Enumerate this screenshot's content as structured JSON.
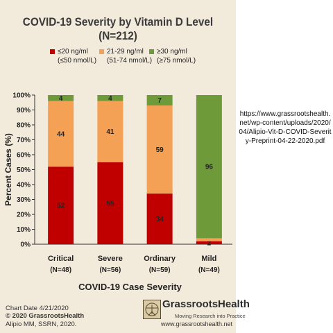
{
  "chart_data": {
    "type": "bar",
    "title": "COVID-19 Severity by Vitamin D Level (N=212)",
    "xlabel": "COVID-19 Case Severity",
    "ylabel": "Percent Cases (%)",
    "ylim": [
      0,
      100
    ],
    "yticks": [
      "0%",
      "10%",
      "20%",
      "30%",
      "40%",
      "50%",
      "60%",
      "70%",
      "80%",
      "90%",
      "100%"
    ],
    "stacked": true,
    "categories": [
      "Critical",
      "Severe",
      "Ordinary",
      "Mild"
    ],
    "category_n": [
      "(N=48)",
      "(N=56)",
      "(N=59)",
      "(N=49)"
    ],
    "series": [
      {
        "name": "≤20 ng/ml (≤50 nmol/L)",
        "values": [
          52,
          55,
          34,
          2
        ],
        "labels": [
          "52",
          "55",
          "34",
          "2"
        ],
        "color": "#c00000"
      },
      {
        "name": "21-29 ng/ml (51-74 nmol/L)",
        "values": [
          44,
          41,
          59,
          2
        ],
        "labels": [
          "44",
          "41",
          "59",
          ""
        ],
        "color": "#f4a055"
      },
      {
        "name": "≥30 ng/ml (≥75 nmol/L)",
        "values": [
          4,
          4,
          7,
          96
        ],
        "labels": [
          "4",
          "4",
          "7",
          "96"
        ],
        "color": "#6e9a3a"
      }
    ],
    "legend_position": "top",
    "grid": false
  },
  "legend": [
    {
      "line1": "≤20 ng/ml",
      "line2": "(≤50 nmol/L)",
      "color": "#c00000"
    },
    {
      "line1": "21-29 ng/ml",
      "line2": "(51-74 nmol/L)",
      "color": "#f4a055"
    },
    {
      "line1": "≥30 ng/ml",
      "line2": "(≥75 nmol/L)",
      "color": "#6e9a3a"
    }
  ],
  "side_url": "https://www.grassrootshealth.net/wp-content/uploads/2020/04/Alipio-Vit-D-COVID-Severity-Preprint-04-22-2020.pdf",
  "footer": {
    "chart_date": "Chart Date 4/21/2020",
    "copyright": "© 2020 GrassrootsHealth",
    "citation": "Alipio MM, SSRN, 2020."
  },
  "logo": {
    "name": "GrassrootsHealth",
    "tagline": "Moving Research into Practice",
    "url": "www.grassrootshealth.net"
  },
  "colors": {
    "panel": "#f2eadb",
    "low": "#c00000",
    "mid": "#f4a055",
    "high": "#6e9a3a"
  }
}
